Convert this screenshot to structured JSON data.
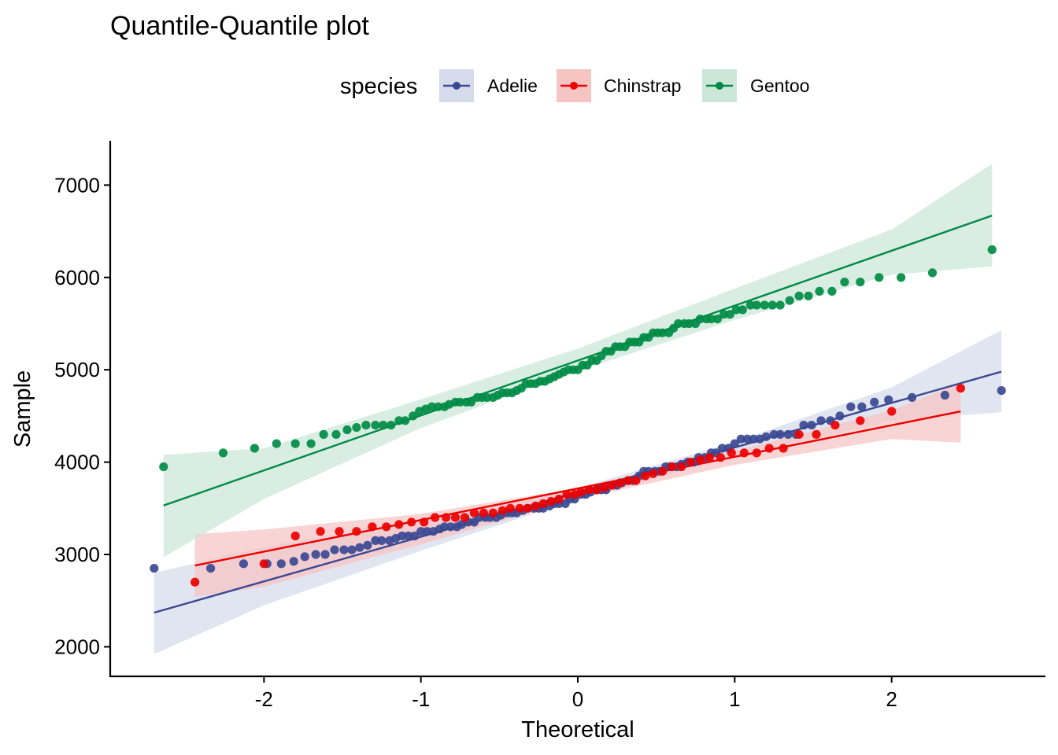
{
  "chart_data": {
    "type": "scatter",
    "title": "Quantile-Quantile plot",
    "xlabel": "Theoretical",
    "ylabel": "Sample",
    "xlim": [
      -2.98,
      2.98
    ],
    "ylim": [
      1680,
      7480
    ],
    "x_ticks": [
      -2,
      -1,
      0,
      1,
      2
    ],
    "x_tick_labels": [
      "-2",
      "-1",
      "0",
      "1",
      "2"
    ],
    "y_ticks": [
      2000,
      3000,
      4000,
      5000,
      6000,
      7000
    ],
    "y_tick_labels": [
      "2000",
      "3000",
      "4000",
      "5000",
      "6000",
      "7000"
    ],
    "grid": false,
    "legend": {
      "title": "species",
      "position": "top"
    },
    "series": [
      {
        "name": "Adelie",
        "color": "#3b4992",
        "band_color": "#d5dbea",
        "ref_line": {
          "x": [
            -2.7,
            2.7
          ],
          "y": [
            2370,
            4980
          ]
        },
        "band": {
          "x": [
            -2.7,
            -2.0,
            -1.0,
            0.0,
            1.0,
            2.0,
            2.7
          ],
          "lower": [
            1920,
            2450,
            3040,
            3600,
            4060,
            4450,
            4540
          ],
          "upper": [
            2800,
            3080,
            3390,
            3720,
            4220,
            4810,
            5430
          ]
        },
        "points": [
          [
            -2.7,
            2850
          ],
          [
            -2.34,
            2850
          ],
          [
            -2.13,
            2900
          ],
          [
            -1.98,
            2900
          ],
          [
            -1.89,
            2900
          ],
          [
            -1.81,
            2925
          ],
          [
            -1.74,
            2975
          ],
          [
            -1.67,
            3000
          ],
          [
            -1.61,
            3000
          ],
          [
            -1.55,
            3050
          ],
          [
            -1.49,
            3050
          ],
          [
            -1.44,
            3050
          ],
          [
            -1.39,
            3075
          ],
          [
            -1.34,
            3100
          ],
          [
            -1.29,
            3150
          ],
          [
            -1.25,
            3150
          ],
          [
            -1.2,
            3150
          ],
          [
            -1.16,
            3175
          ],
          [
            -1.12,
            3200
          ],
          [
            -1.08,
            3200
          ],
          [
            -1.04,
            3200
          ],
          [
            -1.0,
            3250
          ],
          [
            -0.96,
            3250
          ],
          [
            -0.92,
            3250
          ],
          [
            -0.88,
            3275
          ],
          [
            -0.85,
            3300
          ],
          [
            -0.81,
            3300
          ],
          [
            -0.77,
            3300
          ],
          [
            -0.74,
            3325
          ],
          [
            -0.7,
            3350
          ],
          [
            -0.66,
            3350
          ],
          [
            -0.63,
            3400
          ],
          [
            -0.59,
            3400
          ],
          [
            -0.56,
            3400
          ],
          [
            -0.52,
            3400
          ],
          [
            -0.49,
            3425
          ],
          [
            -0.45,
            3450
          ],
          [
            -0.42,
            3450
          ],
          [
            -0.39,
            3450
          ],
          [
            -0.35,
            3475
          ],
          [
            -0.32,
            3500
          ],
          [
            -0.28,
            3500
          ],
          [
            -0.25,
            3500
          ],
          [
            -0.22,
            3500
          ],
          [
            -0.18,
            3525
          ],
          [
            -0.15,
            3550
          ],
          [
            -0.12,
            3550
          ],
          [
            -0.08,
            3550
          ],
          [
            -0.05,
            3600
          ],
          [
            -0.02,
            3600
          ],
          [
            0.02,
            3650
          ],
          [
            0.05,
            3650
          ],
          [
            0.08,
            3675
          ],
          [
            0.12,
            3700
          ],
          [
            0.15,
            3700
          ],
          [
            0.18,
            3700
          ],
          [
            0.22,
            3750
          ],
          [
            0.25,
            3750
          ],
          [
            0.28,
            3775
          ],
          [
            0.32,
            3800
          ],
          [
            0.35,
            3800
          ],
          [
            0.39,
            3850
          ],
          [
            0.42,
            3900
          ],
          [
            0.45,
            3900
          ],
          [
            0.49,
            3900
          ],
          [
            0.52,
            3900
          ],
          [
            0.56,
            3950
          ],
          [
            0.59,
            3950
          ],
          [
            0.63,
            3950
          ],
          [
            0.66,
            3975
          ],
          [
            0.7,
            4000
          ],
          [
            0.74,
            4000
          ],
          [
            0.77,
            4050
          ],
          [
            0.81,
            4050
          ],
          [
            0.85,
            4100
          ],
          [
            0.88,
            4100
          ],
          [
            0.92,
            4150
          ],
          [
            0.96,
            4150
          ],
          [
            1.0,
            4200
          ],
          [
            1.04,
            4250
          ],
          [
            1.08,
            4250
          ],
          [
            1.12,
            4250
          ],
          [
            1.16,
            4250
          ],
          [
            1.2,
            4275
          ],
          [
            1.25,
            4300
          ],
          [
            1.29,
            4300
          ],
          [
            1.34,
            4300
          ],
          [
            1.39,
            4300
          ],
          [
            1.44,
            4400
          ],
          [
            1.49,
            4400
          ],
          [
            1.55,
            4450
          ],
          [
            1.61,
            4450
          ],
          [
            1.67,
            4500
          ],
          [
            1.74,
            4600
          ],
          [
            1.81,
            4600
          ],
          [
            1.89,
            4650
          ],
          [
            1.98,
            4675
          ],
          [
            2.13,
            4700
          ],
          [
            2.34,
            4725
          ],
          [
            2.7,
            4775
          ]
        ]
      },
      {
        "name": "Chinstrap",
        "color": "#ee0000",
        "band_color": "#f7c4c4",
        "ref_line": {
          "x": [
            -2.44,
            2.44
          ],
          "y": [
            2880,
            4550
          ]
        },
        "band": {
          "x": [
            -2.44,
            -2.0,
            -1.0,
            0.0,
            1.0,
            2.0,
            2.44
          ],
          "lower": [
            2540,
            2650,
            3110,
            3600,
            3970,
            4250,
            4210
          ],
          "upper": [
            3220,
            3270,
            3440,
            3720,
            4120,
            4560,
            4860
          ]
        },
        "points": [
          [
            -2.44,
            2700
          ],
          [
            -2.0,
            2900
          ],
          [
            -1.8,
            3200
          ],
          [
            -1.64,
            3250
          ],
          [
            -1.52,
            3250
          ],
          [
            -1.41,
            3250
          ],
          [
            -1.31,
            3300
          ],
          [
            -1.22,
            3300
          ],
          [
            -1.14,
            3325
          ],
          [
            -1.06,
            3350
          ],
          [
            -0.98,
            3350
          ],
          [
            -0.91,
            3400
          ],
          [
            -0.84,
            3400
          ],
          [
            -0.78,
            3400
          ],
          [
            -0.72,
            3400
          ],
          [
            -0.66,
            3450
          ],
          [
            -0.6,
            3450
          ],
          [
            -0.54,
            3450
          ],
          [
            -0.48,
            3475
          ],
          [
            -0.43,
            3500
          ],
          [
            -0.37,
            3500
          ],
          [
            -0.32,
            3500
          ],
          [
            -0.27,
            3525
          ],
          [
            -0.22,
            3550
          ],
          [
            -0.17,
            3575
          ],
          [
            -0.12,
            3600
          ],
          [
            -0.07,
            3650
          ],
          [
            -0.02,
            3650
          ],
          [
            0.02,
            3675
          ],
          [
            0.07,
            3700
          ],
          [
            0.12,
            3700
          ],
          [
            0.17,
            3725
          ],
          [
            0.22,
            3750
          ],
          [
            0.27,
            3775
          ],
          [
            0.32,
            3800
          ],
          [
            0.37,
            3800
          ],
          [
            0.43,
            3850
          ],
          [
            0.48,
            3875
          ],
          [
            0.54,
            3900
          ],
          [
            0.6,
            3950
          ],
          [
            0.66,
            3950
          ],
          [
            0.72,
            4000
          ],
          [
            0.78,
            4025
          ],
          [
            0.84,
            4050
          ],
          [
            0.91,
            4050
          ],
          [
            0.98,
            4100
          ],
          [
            1.06,
            4100
          ],
          [
            1.14,
            4100
          ],
          [
            1.22,
            4150
          ],
          [
            1.31,
            4150
          ],
          [
            1.41,
            4300
          ],
          [
            1.52,
            4300
          ],
          [
            1.64,
            4400
          ],
          [
            1.8,
            4450
          ],
          [
            2.0,
            4550
          ],
          [
            2.44,
            4800
          ]
        ]
      },
      {
        "name": "Gentoo",
        "color": "#008b45",
        "band_color": "#cce6d8",
        "ref_line": {
          "x": [
            -2.64,
            2.64
          ],
          "y": [
            3530,
            6670
          ]
        },
        "band": {
          "x": [
            -2.64,
            -2.0,
            -1.0,
            0.0,
            1.0,
            2.0,
            2.64
          ],
          "lower": [
            2970,
            3600,
            4370,
            4990,
            5540,
            6030,
            6120
          ],
          "upper": [
            4080,
            4150,
            4680,
            5230,
            5880,
            6520,
            7230
          ]
        },
        "points": [
          [
            -2.64,
            3950
          ],
          [
            -2.26,
            4100
          ],
          [
            -2.06,
            4150
          ],
          [
            -1.92,
            4200
          ],
          [
            -1.8,
            4200
          ],
          [
            -1.7,
            4200
          ],
          [
            -1.62,
            4300
          ],
          [
            -1.54,
            4300
          ],
          [
            -1.47,
            4350
          ],
          [
            -1.41,
            4375
          ],
          [
            -1.35,
            4400
          ],
          [
            -1.29,
            4400
          ],
          [
            -1.24,
            4400
          ],
          [
            -1.19,
            4400
          ],
          [
            -1.14,
            4450
          ],
          [
            -1.1,
            4450
          ],
          [
            -1.05,
            4500
          ],
          [
            -1.01,
            4550
          ],
          [
            -0.97,
            4575
          ],
          [
            -0.93,
            4600
          ],
          [
            -0.89,
            4600
          ],
          [
            -0.85,
            4600
          ],
          [
            -0.82,
            4625
          ],
          [
            -0.78,
            4650
          ],
          [
            -0.75,
            4650
          ],
          [
            -0.71,
            4650
          ],
          [
            -0.68,
            4650
          ],
          [
            -0.64,
            4700
          ],
          [
            -0.61,
            4700
          ],
          [
            -0.58,
            4700
          ],
          [
            -0.54,
            4700
          ],
          [
            -0.51,
            4725
          ],
          [
            -0.48,
            4750
          ],
          [
            -0.45,
            4750
          ],
          [
            -0.42,
            4750
          ],
          [
            -0.39,
            4775
          ],
          [
            -0.36,
            4800
          ],
          [
            -0.33,
            4850
          ],
          [
            -0.3,
            4850
          ],
          [
            -0.27,
            4850
          ],
          [
            -0.24,
            4875
          ],
          [
            -0.21,
            4875
          ],
          [
            -0.18,
            4900
          ],
          [
            -0.15,
            4925
          ],
          [
            -0.12,
            4950
          ],
          [
            -0.09,
            4975
          ],
          [
            -0.06,
            5000
          ],
          [
            -0.03,
            5000
          ],
          [
            0.0,
            5000
          ],
          [
            0.03,
            5050
          ],
          [
            0.06,
            5050
          ],
          [
            0.09,
            5100
          ],
          [
            0.12,
            5100
          ],
          [
            0.15,
            5150
          ],
          [
            0.18,
            5200
          ],
          [
            0.21,
            5200
          ],
          [
            0.24,
            5250
          ],
          [
            0.27,
            5250
          ],
          [
            0.3,
            5250
          ],
          [
            0.33,
            5300
          ],
          [
            0.36,
            5300
          ],
          [
            0.39,
            5300
          ],
          [
            0.42,
            5350
          ],
          [
            0.45,
            5350
          ],
          [
            0.48,
            5400
          ],
          [
            0.51,
            5400
          ],
          [
            0.54,
            5400
          ],
          [
            0.58,
            5400
          ],
          [
            0.61,
            5450
          ],
          [
            0.64,
            5500
          ],
          [
            0.68,
            5500
          ],
          [
            0.71,
            5500
          ],
          [
            0.75,
            5500
          ],
          [
            0.78,
            5550
          ],
          [
            0.82,
            5550
          ],
          [
            0.85,
            5550
          ],
          [
            0.89,
            5550
          ],
          [
            0.93,
            5600
          ],
          [
            0.97,
            5600
          ],
          [
            1.01,
            5650
          ],
          [
            1.05,
            5650
          ],
          [
            1.1,
            5700
          ],
          [
            1.14,
            5700
          ],
          [
            1.19,
            5700
          ],
          [
            1.24,
            5700
          ],
          [
            1.29,
            5700
          ],
          [
            1.35,
            5750
          ],
          [
            1.41,
            5800
          ],
          [
            1.47,
            5800
          ],
          [
            1.54,
            5850
          ],
          [
            1.62,
            5850
          ],
          [
            1.7,
            5950
          ],
          [
            1.8,
            5950
          ],
          [
            1.92,
            6000
          ],
          [
            2.06,
            6000
          ],
          [
            2.26,
            6050
          ],
          [
            2.64,
            6300
          ]
        ]
      }
    ]
  }
}
